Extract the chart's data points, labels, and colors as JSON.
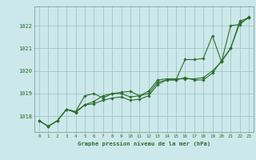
{
  "xlabel": "Graphe pression niveau de la mer (hPa)",
  "ylabel": "",
  "background_color": "#cce8ea",
  "grid_color": "#9bbfbf",
  "line_color": "#2d6e2d",
  "marker_color": "#2d6e2d",
  "text_color": "#2d6e2d",
  "ylim_min": 1017.3,
  "ylim_max": 1022.85,
  "yticks": [
    1018,
    1019,
    1020,
    1021,
    1022
  ],
  "xticks": [
    0,
    1,
    2,
    3,
    4,
    5,
    6,
    7,
    8,
    9,
    10,
    11,
    12,
    13,
    14,
    15,
    16,
    17,
    18,
    19,
    20,
    21,
    22,
    23
  ],
  "series": [
    [
      1017.8,
      1017.55,
      1017.8,
      1018.3,
      1018.2,
      1018.5,
      1018.55,
      1018.7,
      1018.8,
      1018.85,
      1018.7,
      1018.75,
      1018.9,
      1019.4,
      1019.6,
      1019.6,
      1019.7,
      1019.6,
      1019.6,
      1019.9,
      1020.45,
      1021.0,
      1022.2,
      1022.35
    ],
    [
      1017.8,
      1017.55,
      1017.8,
      1018.3,
      1018.2,
      1018.9,
      1019.0,
      1018.8,
      1019.0,
      1019.0,
      1018.85,
      1018.9,
      1019.0,
      1019.5,
      1019.6,
      1019.6,
      1020.5,
      1020.5,
      1020.55,
      1021.55,
      1020.4,
      1022.0,
      1022.05,
      1022.4
    ],
    [
      1017.8,
      1017.55,
      1017.8,
      1018.3,
      1018.15,
      1018.5,
      1018.65,
      1018.9,
      1019.0,
      1019.05,
      1019.1,
      1018.9,
      1019.1,
      1019.6,
      1019.65,
      1019.65,
      1019.65,
      1019.65,
      1019.7,
      1020.0,
      1020.4,
      1021.0,
      1022.1,
      1022.35
    ]
  ]
}
